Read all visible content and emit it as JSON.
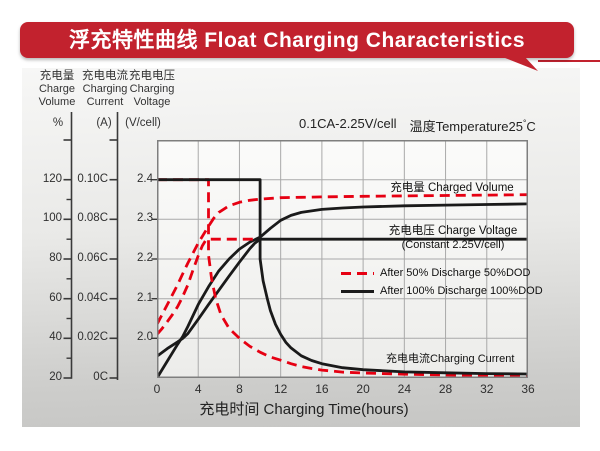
{
  "title_banner": {
    "text": "浮充特性曲线 Float Charging Characteristics",
    "color": "#c2222e"
  },
  "axis_headers": [
    {
      "zh": "充电量",
      "en1": "Charge",
      "en2": "Volume",
      "unit": "%"
    },
    {
      "zh": "充电电流",
      "en1": "Charging",
      "en2": "Current",
      "unit": "(A)"
    },
    {
      "zh": "充电电压",
      "en1": "Charging",
      "en2": "Voltage",
      "unit": "(V/cell)"
    }
  ],
  "conditions": {
    "charge_condition": "0.1CA-2.25V/cell",
    "temp_prefix": "温度Temperature25",
    "degree": "°",
    "degree_unit": "C"
  },
  "chart_data": {
    "type": "line",
    "grid_color": "#a9a9a9",
    "frame_color": "#7e7e7e",
    "x_axis": {
      "label": "充电时间 Charging Time(hours)",
      "ticks": [
        0,
        4,
        8,
        12,
        16,
        20,
        24,
        28,
        32,
        36
      ],
      "range": [
        0,
        36
      ]
    },
    "y_axes": {
      "volume": {
        "name": "Charge Volume (%)",
        "labels": [
          120,
          100,
          80,
          60,
          40,
          20
        ],
        "tick_marks": [
          140,
          120,
          100,
          80,
          60,
          40,
          20
        ],
        "minor_marks": [
          110,
          90,
          70,
          50,
          30
        ],
        "range_at_frame": [
          140,
          20
        ]
      },
      "current": {
        "name": "Charging Current (CA)",
        "labels": [
          "0.10C",
          "0.08C",
          "0.06C",
          "0.04C",
          "0.02C",
          "0C"
        ],
        "label_values": [
          0.1,
          0.08,
          0.06,
          0.04,
          0.02,
          0
        ],
        "tick_marks": [
          0.12,
          0.1,
          0.08,
          0.06,
          0.04,
          0.02,
          0
        ],
        "range_at_frame": [
          0.12,
          0
        ]
      },
      "voltage": {
        "name": "Charging Voltage (V/cell)",
        "labels": [
          2.4,
          2.3,
          2.2,
          2.1,
          2.0
        ],
        "range_at_frame": [
          2.5,
          1.9
        ]
      }
    },
    "annotations": {
      "charged_volume": "充电量 Charged Volume",
      "charge_voltage": "充电电压 Charge Voltage",
      "charge_voltage_sub": "(Constant 2.25V/cell)",
      "charging_current": "充电电流Charging Current"
    },
    "legend": [
      {
        "label": "After 50% Discharge 50%DOD",
        "style": "dashed",
        "color": "#e60012"
      },
      {
        "label": "After 100%  Discharge 100%DOD",
        "style": "solid",
        "color": "#1a1a1a"
      }
    ],
    "series": [
      {
        "name": "charged_volume_50dod",
        "axis": "volume",
        "dod": "50%",
        "color": "#e60012",
        "dash": true,
        "points": [
          [
            0,
            47
          ],
          [
            1,
            57
          ],
          [
            2,
            67
          ],
          [
            2.4,
            71.5
          ],
          [
            3,
            78
          ],
          [
            4,
            88
          ],
          [
            5,
            96.5
          ],
          [
            5.5,
            100.5
          ],
          [
            6,
            103.5
          ],
          [
            7,
            106.8
          ],
          [
            8,
            108.6
          ],
          [
            9,
            109.6
          ],
          [
            10,
            110.2
          ],
          [
            12,
            110.9
          ],
          [
            14,
            111.1
          ],
          [
            16,
            111.3
          ],
          [
            20,
            111.6
          ],
          [
            24,
            111.8
          ],
          [
            28,
            112
          ],
          [
            32,
            112.2
          ],
          [
            36,
            112.4
          ]
        ]
      },
      {
        "name": "charged_volume_100dod",
        "axis": "volume",
        "dod": "100%",
        "color": "#1a1a1a",
        "dash": false,
        "points": [
          [
            0,
            20
          ],
          [
            1,
            28.5
          ],
          [
            2,
            37
          ],
          [
            2.5,
            41
          ],
          [
            3,
            46
          ],
          [
            4,
            57
          ],
          [
            5,
            66
          ],
          [
            6,
            74
          ],
          [
            7,
            80
          ],
          [
            8,
            85
          ],
          [
            9,
            88.5
          ],
          [
            10,
            91
          ],
          [
            11,
            95.5
          ],
          [
            12,
            99.5
          ],
          [
            13,
            102
          ],
          [
            14,
            103.5
          ],
          [
            16,
            105
          ],
          [
            18,
            105.7
          ],
          [
            20,
            106.2
          ],
          [
            24,
            106.8
          ],
          [
            28,
            107.2
          ],
          [
            32,
            107.5
          ],
          [
            36,
            107.8
          ]
        ]
      },
      {
        "name": "charge_voltage_50dod",
        "axis": "voltage",
        "dod": "50%",
        "color": "#e60012",
        "dash": true,
        "points": [
          [
            0,
            2.01
          ],
          [
            0.5,
            2.025
          ],
          [
            1,
            2.042
          ],
          [
            1.5,
            2.06
          ],
          [
            2,
            2.08
          ],
          [
            2.4,
            2.1
          ],
          [
            3,
            2.135
          ],
          [
            3.5,
            2.173
          ],
          [
            4,
            2.208
          ],
          [
            4.4,
            2.233
          ],
          [
            4.7,
            2.246
          ],
          [
            5,
            2.25
          ],
          [
            10,
            2.25
          ]
        ]
      },
      {
        "name": "charge_voltage_100dod",
        "axis": "voltage",
        "dod": "100%",
        "color": "#1a1a1a",
        "dash": false,
        "points": [
          [
            0,
            1.955
          ],
          [
            1,
            1.974
          ],
          [
            2,
            1.991
          ],
          [
            2.5,
            2.0
          ],
          [
            3,
            2.012
          ],
          [
            4,
            2.048
          ],
          [
            5,
            2.085
          ],
          [
            6,
            2.121
          ],
          [
            7,
            2.157
          ],
          [
            8,
            2.192
          ],
          [
            9,
            2.226
          ],
          [
            9.5,
            2.24
          ],
          [
            10,
            2.25
          ],
          [
            36,
            2.25
          ]
        ]
      },
      {
        "name": "charging_current_50dod",
        "axis": "current",
        "dod": "50%",
        "color": "#e60012",
        "dash": true,
        "points": [
          [
            0,
            0.1
          ],
          [
            5,
            0.1
          ],
          [
            5,
            0.062
          ],
          [
            5.3,
            0.05
          ],
          [
            5.7,
            0.04
          ],
          [
            6.2,
            0.032
          ],
          [
            7,
            0.025
          ],
          [
            8,
            0.02
          ],
          [
            9,
            0.016
          ],
          [
            10,
            0.013
          ],
          [
            11,
            0.0106
          ],
          [
            12,
            0.009
          ],
          [
            13,
            0.0072
          ],
          [
            14,
            0.0058
          ],
          [
            15,
            0.0048
          ],
          [
            16,
            0.004
          ],
          [
            18,
            0.003
          ],
          [
            20,
            0.0025
          ],
          [
            24,
            0.0019
          ],
          [
            28,
            0.0015
          ],
          [
            32,
            0.0013
          ],
          [
            36,
            0.0012
          ]
        ]
      },
      {
        "name": "charging_current_100dod",
        "axis": "current",
        "dod": "100%",
        "color": "#1a1a1a",
        "dash": false,
        "points": [
          [
            0,
            0.1
          ],
          [
            10,
            0.1
          ],
          [
            10,
            0.06
          ],
          [
            10.3,
            0.049
          ],
          [
            10.7,
            0.04
          ],
          [
            11,
            0.034
          ],
          [
            11.5,
            0.027
          ],
          [
            12,
            0.022
          ],
          [
            12.5,
            0.018
          ],
          [
            13,
            0.0152
          ],
          [
            14,
            0.0112
          ],
          [
            15,
            0.0088
          ],
          [
            16,
            0.0072
          ],
          [
            18,
            0.0052
          ],
          [
            20,
            0.0042
          ],
          [
            24,
            0.0031
          ],
          [
            28,
            0.0026
          ],
          [
            32,
            0.0022
          ],
          [
            36,
            0.002
          ]
        ]
      }
    ]
  }
}
